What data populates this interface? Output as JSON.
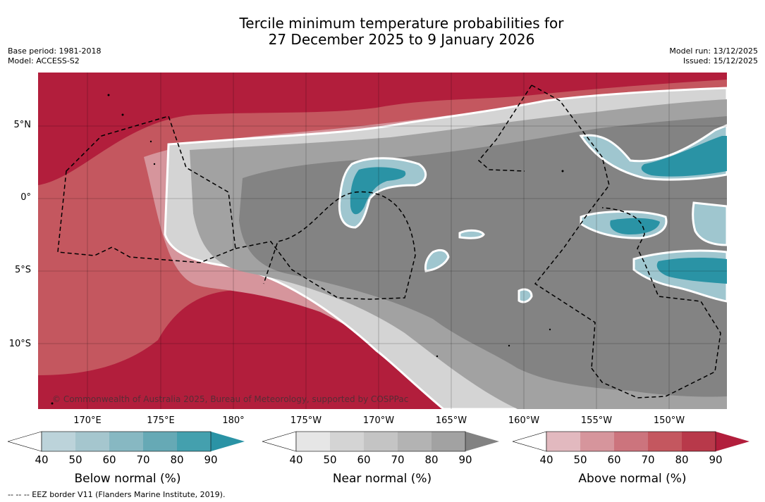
{
  "title": {
    "line1": "Tercile minimum temperature probabilities for",
    "line2": "27 December 2025 to 9 January 2026"
  },
  "meta": {
    "base_period": "Base period: 1981-2018",
    "model": "Model: ACCESS-S2",
    "model_run": "Model run: 13/12/2025",
    "issued": "Issued: 15/12/2025"
  },
  "axes": {
    "lat_labels": [
      "5°N",
      "0°",
      "5°S",
      "10°S"
    ],
    "lon_labels": [
      "170°E",
      "175°E",
      "180°",
      "175°W",
      "170°W",
      "165°W",
      "160°W",
      "155°W",
      "150°W"
    ]
  },
  "map": {
    "copyright": "© Commonwealth of Australia 2025, Bureau of Meteorology, supported by COSPPac"
  },
  "legends": [
    {
      "title": "Below normal (%)",
      "ticks": [
        "40",
        "50",
        "60",
        "70",
        "80",
        "90"
      ],
      "colors": [
        "#ffffff",
        "#bcd3da",
        "#a5c6ce",
        "#87b8c2",
        "#66a9b5",
        "#44a0ae",
        "#2a93a5"
      ]
    },
    {
      "title": "Near normal (%)",
      "ticks": [
        "40",
        "50",
        "60",
        "70",
        "80",
        "90"
      ],
      "colors": [
        "#ffffff",
        "#e6e6e6",
        "#d4d4d4",
        "#c4c4c4",
        "#b3b3b3",
        "#a2a2a2",
        "#828282"
      ]
    },
    {
      "title": "Above normal (%)",
      "ticks": [
        "40",
        "50",
        "60",
        "70",
        "80",
        "90"
      ],
      "colors": [
        "#ffffff",
        "#e2b9bf",
        "#d6959c",
        "#cc747d",
        "#c4575f",
        "#b8394a",
        "#b21e3c"
      ]
    }
  ],
  "footnote": "--  --  -- EEZ border V11 (Flanders Marine Institute, 2019).",
  "palette": {
    "above_dark": "#b21e3c",
    "above_mid": "#c4575f",
    "above_light": "#d6959c",
    "near_dark": "#838383",
    "near_mid": "#a2a2a2",
    "near_light": "#d4d4d4",
    "below_dark": "#2a93a5",
    "below_mid": "#66a9b5",
    "below_light": "#9fc6cf"
  }
}
